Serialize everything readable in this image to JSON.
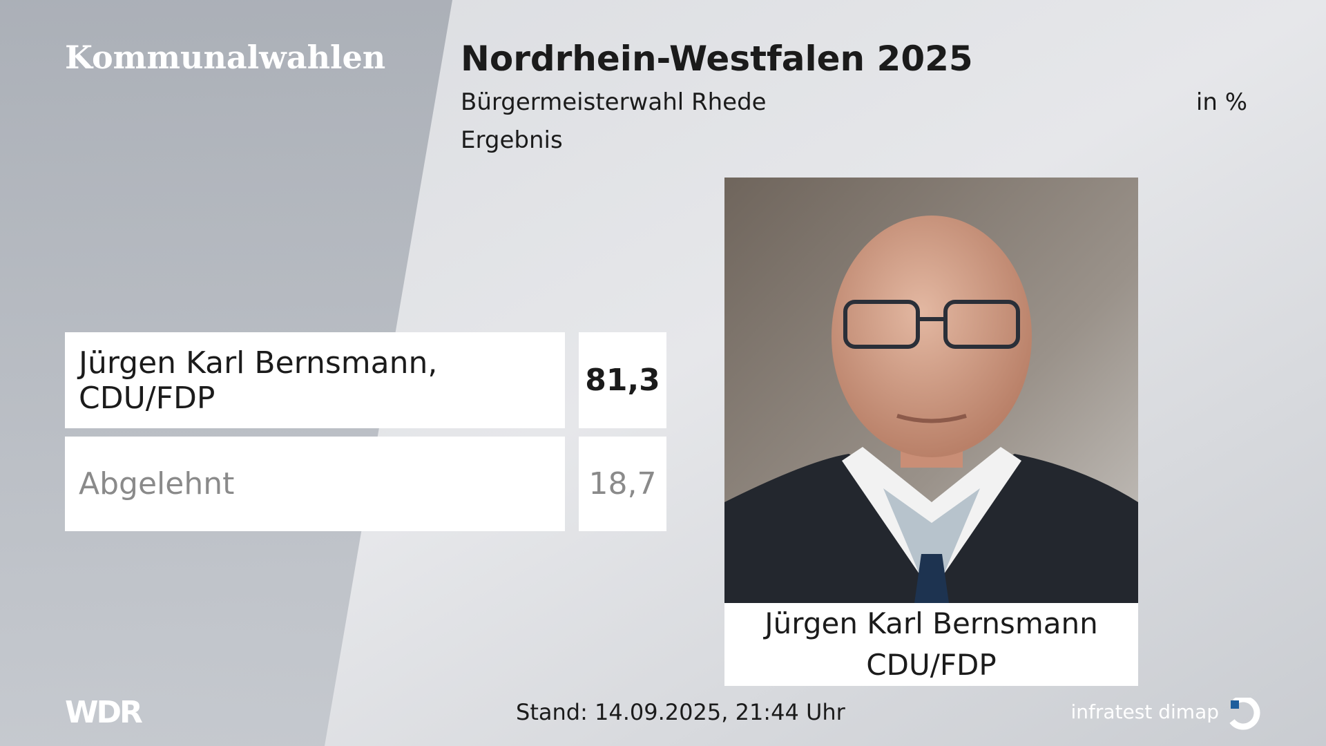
{
  "header": {
    "brand": "Kommunalwahlen",
    "title": "Nordrhein-Westfalen 2025",
    "subtitle": "Bürgermeisterwahl Rhede",
    "unit": "in %",
    "status": "Ergebnis"
  },
  "table": {
    "rows": [
      [
        "Jürgen Karl Bernsmann, CDU/FDP",
        "81,3"
      ],
      [
        "Abgelehnt",
        "18,7"
      ]
    ]
  },
  "portrait": {
    "name": "Jürgen Karl Bernsmann",
    "party": "CDU/FDP"
  },
  "footer": {
    "logo": "WDR",
    "stand": "Stand: 14.09.2025, 21:44 Uhr",
    "source": "infratest dimap"
  }
}
